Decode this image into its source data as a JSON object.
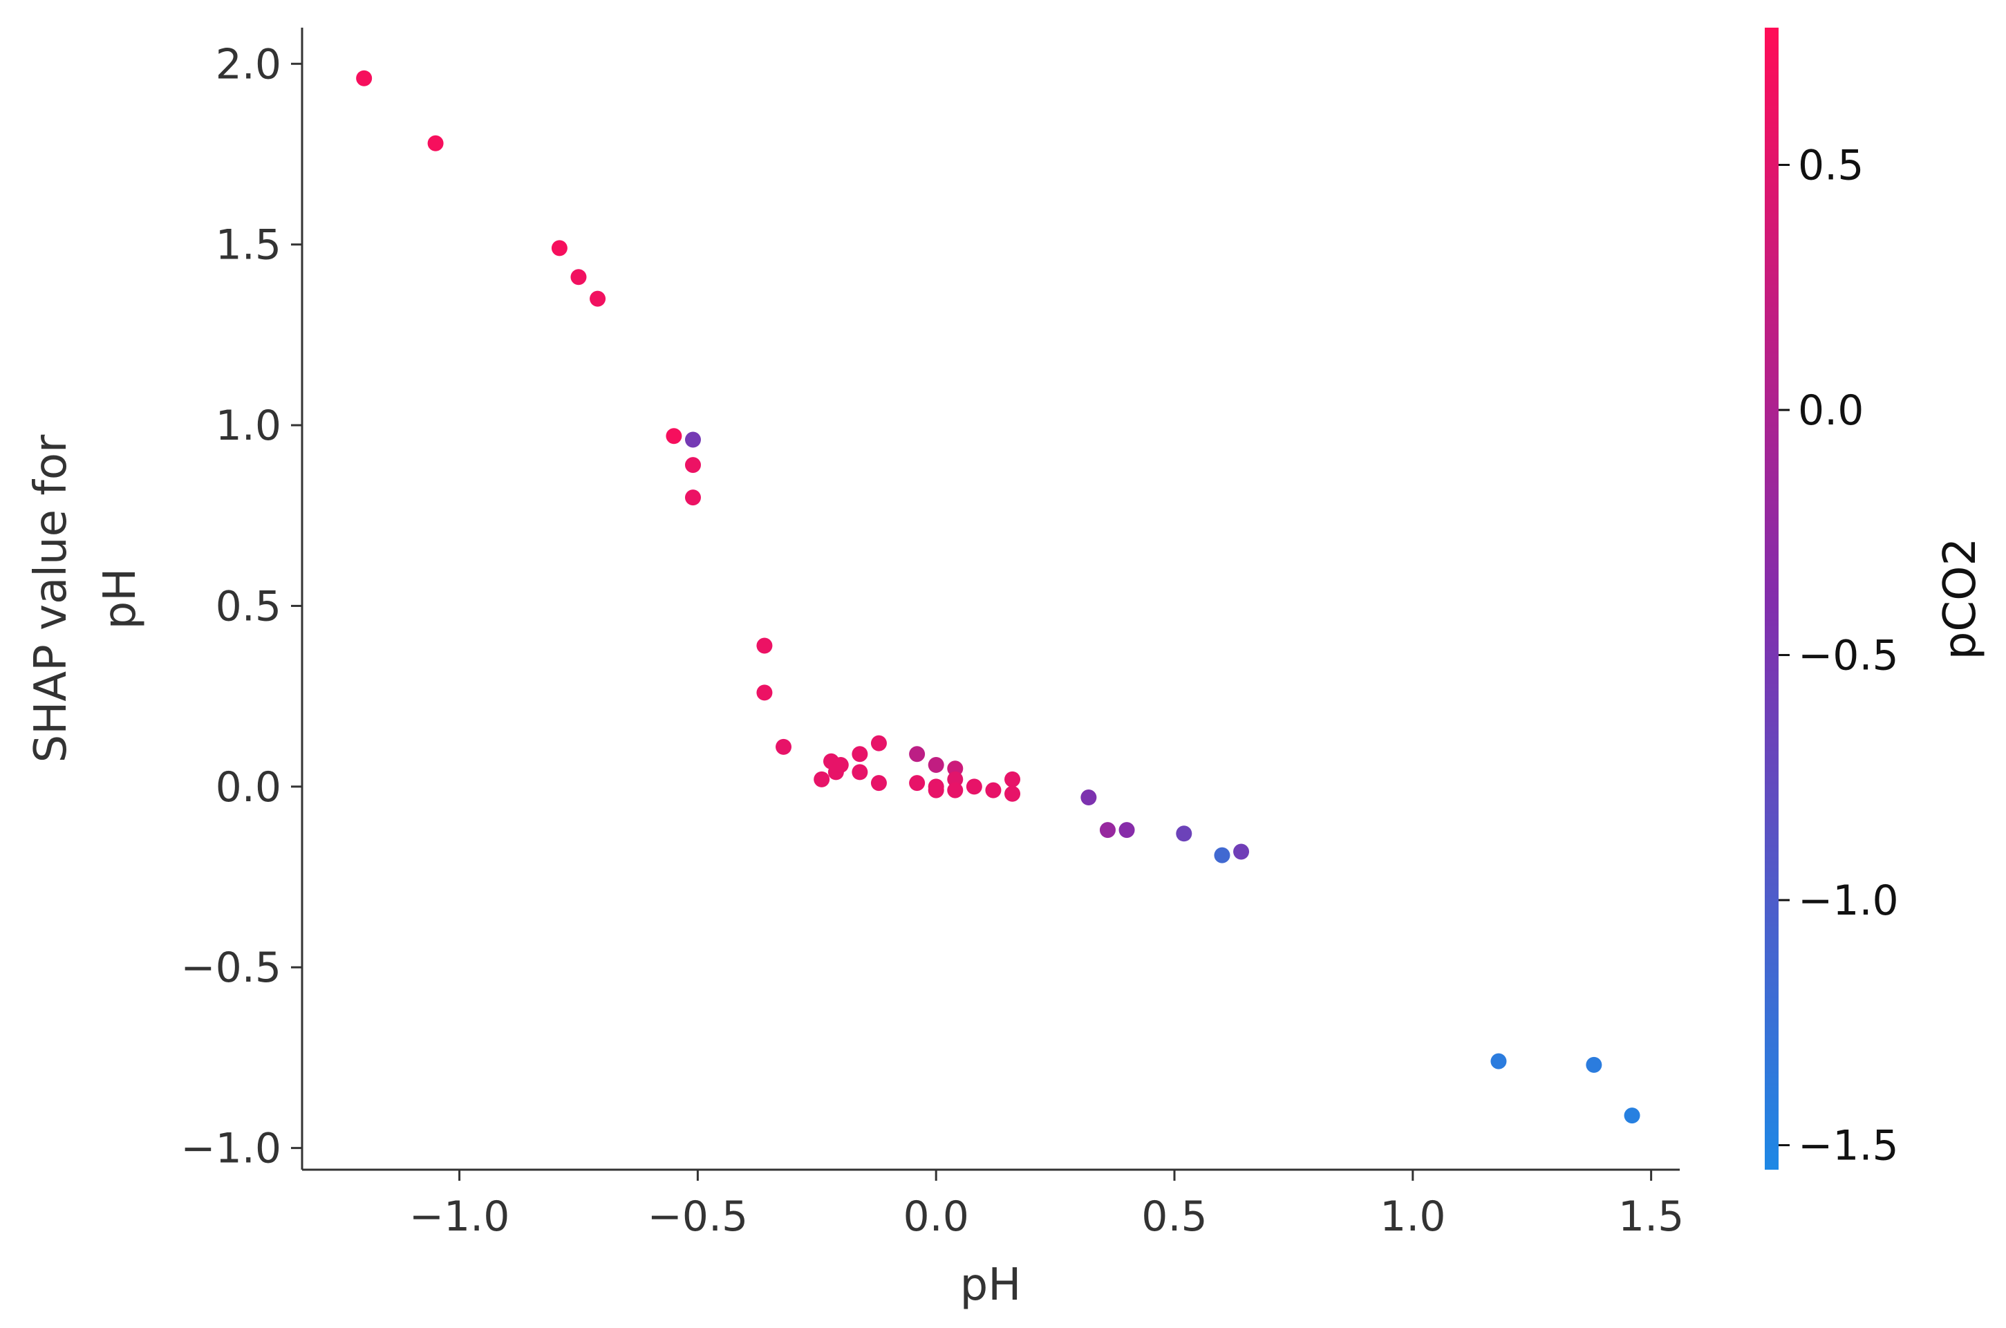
{
  "chart_data": {
    "type": "scatter",
    "title": "",
    "xlabel": "pH",
    "ylabel_lines": [
      "SHAP value for",
      "pH"
    ],
    "xlim": [
      -1.33,
      1.56
    ],
    "ylim": [
      -1.06,
      2.1
    ],
    "x_ticks": [
      -1.0,
      -0.5,
      0.0,
      0.5,
      1.0,
      1.5
    ],
    "x_tick_labels": [
      "−1.0",
      "−0.5",
      "0.0",
      "0.5",
      "1.0",
      "1.5"
    ],
    "y_ticks": [
      -1.0,
      -0.5,
      0.0,
      0.5,
      1.0,
      1.5,
      2.0
    ],
    "y_tick_labels": [
      "−1.0",
      "−0.5",
      "0.0",
      "0.5",
      "1.0",
      "1.5",
      "2.0"
    ],
    "grid": false,
    "colorbar": {
      "label": "pCO2",
      "range": [
        -1.55,
        0.78
      ],
      "ticks": [
        0.5,
        0.0,
        -0.5,
        -1.0,
        -1.5
      ],
      "tick_labels": [
        "0.5",
        "0.0",
        "−0.5",
        "−1.0",
        "−1.5"
      ],
      "color_low": "#1e88e5",
      "color_high": "#ff0d57"
    },
    "points": [
      {
        "x": -1.2,
        "y": 1.96,
        "c": 0.7
      },
      {
        "x": -1.05,
        "y": 1.78,
        "c": 0.7
      },
      {
        "x": -0.79,
        "y": 1.49,
        "c": 0.7
      },
      {
        "x": -0.75,
        "y": 1.41,
        "c": 0.65
      },
      {
        "x": -0.71,
        "y": 1.35,
        "c": 0.65
      },
      {
        "x": -0.55,
        "y": 0.97,
        "c": 0.7
      },
      {
        "x": -0.51,
        "y": 0.96,
        "c": -0.55
      },
      {
        "x": -0.51,
        "y": 0.89,
        "c": 0.6
      },
      {
        "x": -0.51,
        "y": 0.8,
        "c": 0.6
      },
      {
        "x": -0.36,
        "y": 0.39,
        "c": 0.6
      },
      {
        "x": -0.36,
        "y": 0.26,
        "c": 0.6
      },
      {
        "x": -0.32,
        "y": 0.11,
        "c": 0.55
      },
      {
        "x": -0.24,
        "y": 0.02,
        "c": 0.55
      },
      {
        "x": -0.22,
        "y": 0.07,
        "c": 0.55
      },
      {
        "x": -0.21,
        "y": 0.04,
        "c": 0.55
      },
      {
        "x": -0.2,
        "y": 0.06,
        "c": 0.55
      },
      {
        "x": -0.16,
        "y": 0.09,
        "c": 0.55
      },
      {
        "x": -0.16,
        "y": 0.04,
        "c": 0.55
      },
      {
        "x": -0.12,
        "y": 0.12,
        "c": 0.55
      },
      {
        "x": -0.12,
        "y": 0.01,
        "c": 0.55
      },
      {
        "x": -0.04,
        "y": 0.09,
        "c": 0.15
      },
      {
        "x": -0.04,
        "y": 0.01,
        "c": 0.55
      },
      {
        "x": 0.0,
        "y": 0.06,
        "c": 0.2
      },
      {
        "x": 0.0,
        "y": 0.0,
        "c": 0.55
      },
      {
        "x": 0.0,
        "y": -0.01,
        "c": 0.55
      },
      {
        "x": 0.04,
        "y": 0.05,
        "c": 0.3
      },
      {
        "x": 0.04,
        "y": 0.02,
        "c": 0.5
      },
      {
        "x": 0.04,
        "y": -0.01,
        "c": 0.55
      },
      {
        "x": 0.08,
        "y": 0.0,
        "c": 0.55
      },
      {
        "x": 0.12,
        "y": -0.01,
        "c": 0.55
      },
      {
        "x": 0.16,
        "y": 0.02,
        "c": 0.55
      },
      {
        "x": 0.16,
        "y": -0.02,
        "c": 0.55
      },
      {
        "x": 0.32,
        "y": -0.03,
        "c": -0.45
      },
      {
        "x": 0.36,
        "y": -0.12,
        "c": -0.2
      },
      {
        "x": 0.4,
        "y": -0.12,
        "c": -0.35
      },
      {
        "x": 0.52,
        "y": -0.13,
        "c": -0.65
      },
      {
        "x": 0.6,
        "y": -0.19,
        "c": -1.15
      },
      {
        "x": 0.64,
        "y": -0.18,
        "c": -0.6
      },
      {
        "x": 1.18,
        "y": -0.76,
        "c": -1.4
      },
      {
        "x": 1.38,
        "y": -0.77,
        "c": -1.4
      },
      {
        "x": 1.46,
        "y": -0.91,
        "c": -1.45
      }
    ]
  }
}
